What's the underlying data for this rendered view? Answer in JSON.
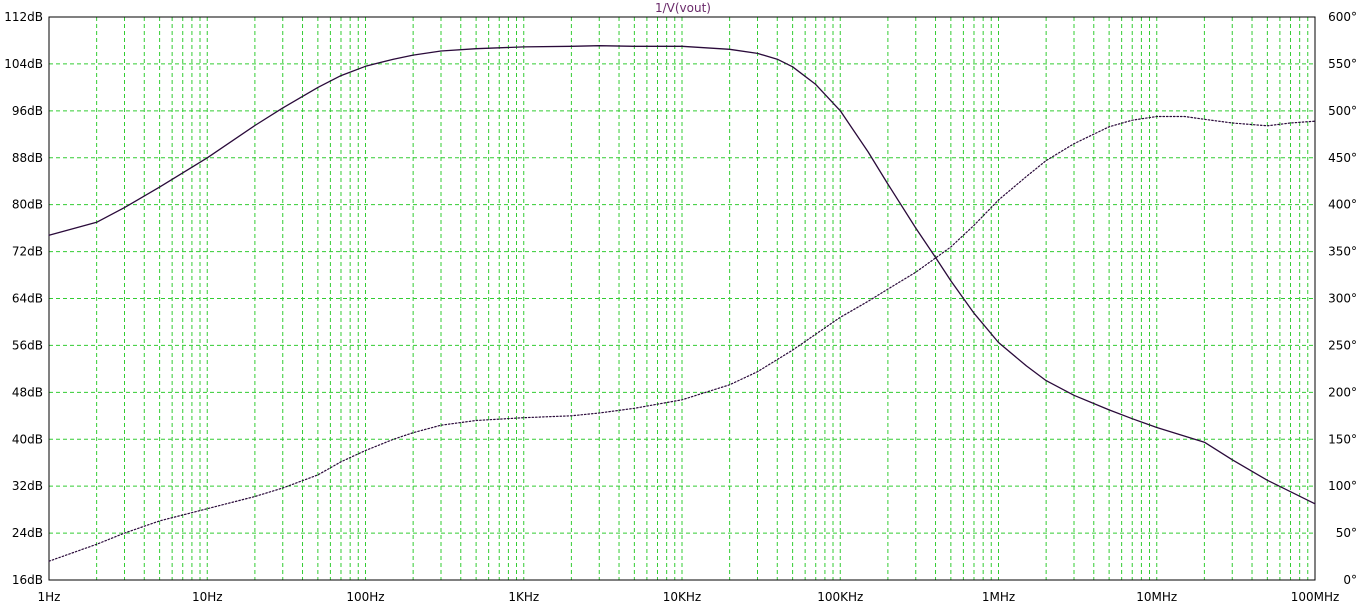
{
  "chart_data": {
    "type": "line",
    "title": "1/V(vout)",
    "x_axis": {
      "scale": "log",
      "range": [
        1,
        100000000
      ],
      "tick_values": [
        1,
        10,
        100,
        1000,
        10000,
        100000,
        1000000,
        10000000,
        100000000
      ],
      "tick_labels": [
        "1Hz",
        "10Hz",
        "100Hz",
        "1KHz",
        "10KHz",
        "100KHz",
        "1MHz",
        "10MHz",
        "100MHz"
      ]
    },
    "y_left": {
      "range": [
        16,
        112
      ],
      "tick_values": [
        16,
        24,
        32,
        40,
        48,
        56,
        64,
        72,
        80,
        88,
        96,
        104,
        112
      ],
      "tick_labels": [
        "16dB",
        "24dB",
        "32dB",
        "40dB",
        "48dB",
        "56dB",
        "64dB",
        "72dB",
        "80dB",
        "88dB",
        "96dB",
        "104dB",
        "112dB"
      ]
    },
    "y_right": {
      "range": [
        0,
        600
      ],
      "tick_values": [
        0,
        50,
        100,
        150,
        200,
        250,
        300,
        350,
        400,
        450,
        500,
        550,
        600
      ],
      "tick_labels": [
        "0°",
        "50°",
        "100°",
        "150°",
        "200°",
        "250°",
        "300°",
        "350°",
        "400°",
        "450°",
        "500°",
        "550°",
        "600°"
      ]
    },
    "grid": true,
    "series": [
      {
        "axis": "left",
        "style": "solid",
        "color": "#2a0a3a",
        "points": [
          [
            1,
            74.8
          ],
          [
            2,
            77.0
          ],
          [
            3,
            79.5
          ],
          [
            5,
            83.0
          ],
          [
            10,
            88.0
          ],
          [
            20,
            93.5
          ],
          [
            30,
            96.5
          ],
          [
            50,
            100.0
          ],
          [
            70,
            102.0
          ],
          [
            100,
            103.6
          ],
          [
            150,
            104.8
          ],
          [
            200,
            105.5
          ],
          [
            300,
            106.2
          ],
          [
            500,
            106.6
          ],
          [
            1000,
            106.9
          ],
          [
            2000,
            107.0
          ],
          [
            3000,
            107.1
          ],
          [
            5000,
            107.0
          ],
          [
            10000,
            107.0
          ],
          [
            20000,
            106.5
          ],
          [
            30000,
            105.8
          ],
          [
            40000,
            104.8
          ],
          [
            50000,
            103.5
          ],
          [
            70000,
            100.5
          ],
          [
            100000,
            96.0
          ],
          [
            150000,
            89.0
          ],
          [
            200000,
            83.5
          ],
          [
            300000,
            76.0
          ],
          [
            400000,
            71.0
          ],
          [
            500000,
            67.0
          ],
          [
            700000,
            61.5
          ],
          [
            1000000,
            56.5
          ],
          [
            1500000,
            52.5
          ],
          [
            2000000,
            50.0
          ],
          [
            3000000,
            47.5
          ],
          [
            5000000,
            45.0
          ],
          [
            7000000,
            43.5
          ],
          [
            10000000,
            42.0
          ],
          [
            20000000,
            39.5
          ],
          [
            30000000,
            36.5
          ],
          [
            50000000,
            33.0
          ],
          [
            100000000,
            29.0
          ]
        ]
      },
      {
        "axis": "right",
        "style": "dotted",
        "color": "#2a0a3a",
        "points": [
          [
            1,
            20
          ],
          [
            2,
            38
          ],
          [
            3,
            50
          ],
          [
            5,
            63
          ],
          [
            10,
            76
          ],
          [
            20,
            89
          ],
          [
            30,
            98
          ],
          [
            50,
            112
          ],
          [
            70,
            126
          ],
          [
            100,
            138
          ],
          [
            150,
            150
          ],
          [
            200,
            157
          ],
          [
            300,
            165
          ],
          [
            500,
            170
          ],
          [
            1000,
            173
          ],
          [
            2000,
            175
          ],
          [
            3000,
            178
          ],
          [
            5000,
            183
          ],
          [
            10000,
            192
          ],
          [
            20000,
            208
          ],
          [
            30000,
            222
          ],
          [
            50000,
            245
          ],
          [
            70000,
            262
          ],
          [
            100000,
            280
          ],
          [
            150000,
            297
          ],
          [
            200000,
            310
          ],
          [
            300000,
            328
          ],
          [
            500000,
            355
          ],
          [
            700000,
            378
          ],
          [
            1000000,
            405
          ],
          [
            1500000,
            430
          ],
          [
            2000000,
            447
          ],
          [
            3000000,
            465
          ],
          [
            5000000,
            483
          ],
          [
            7000000,
            490
          ],
          [
            10000000,
            494
          ],
          [
            15000000,
            494
          ],
          [
            20000000,
            491
          ],
          [
            30000000,
            487
          ],
          [
            50000000,
            484
          ],
          [
            70000000,
            487
          ],
          [
            100000000,
            489
          ]
        ]
      }
    ]
  }
}
